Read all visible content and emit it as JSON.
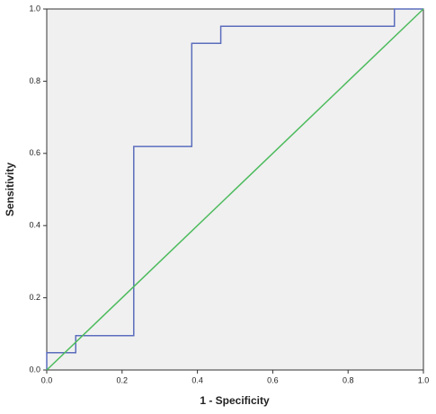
{
  "chart_data": {
    "type": "line",
    "xlabel": "1 - Specificity",
    "ylabel": "Sensitivity",
    "series": [
      {
        "color": "#5b6dbd",
        "step": true,
        "x": [
          0,
          0,
          0.077,
          0.077,
          0.231,
          0.231,
          0.385,
          0.385,
          0.462,
          0.462,
          0.923,
          0.923,
          1
        ],
        "values": [
          0,
          0.048,
          0.048,
          0.095,
          0.095,
          0.619,
          0.619,
          0.905,
          0.905,
          0.952,
          0.952,
          1,
          1
        ]
      },
      {
        "color": "#4cbb5c",
        "x": [
          0,
          1
        ],
        "values": [
          0,
          1
        ]
      }
    ],
    "xlim": [
      0,
      1
    ],
    "ylim": [
      0,
      1
    ],
    "xticks": [
      {
        "value": 0,
        "label": "0.0"
      },
      0.2,
      0.4,
      0.6,
      0.8,
      {
        "value": 1,
        "label": "1.0"
      }
    ],
    "yticks": [
      {
        "value": 0,
        "label": "0.0"
      },
      0.2,
      0.4,
      0.6,
      0.8,
      {
        "value": 1,
        "label": "1.0"
      }
    ],
    "background": "#f0f0f0"
  }
}
